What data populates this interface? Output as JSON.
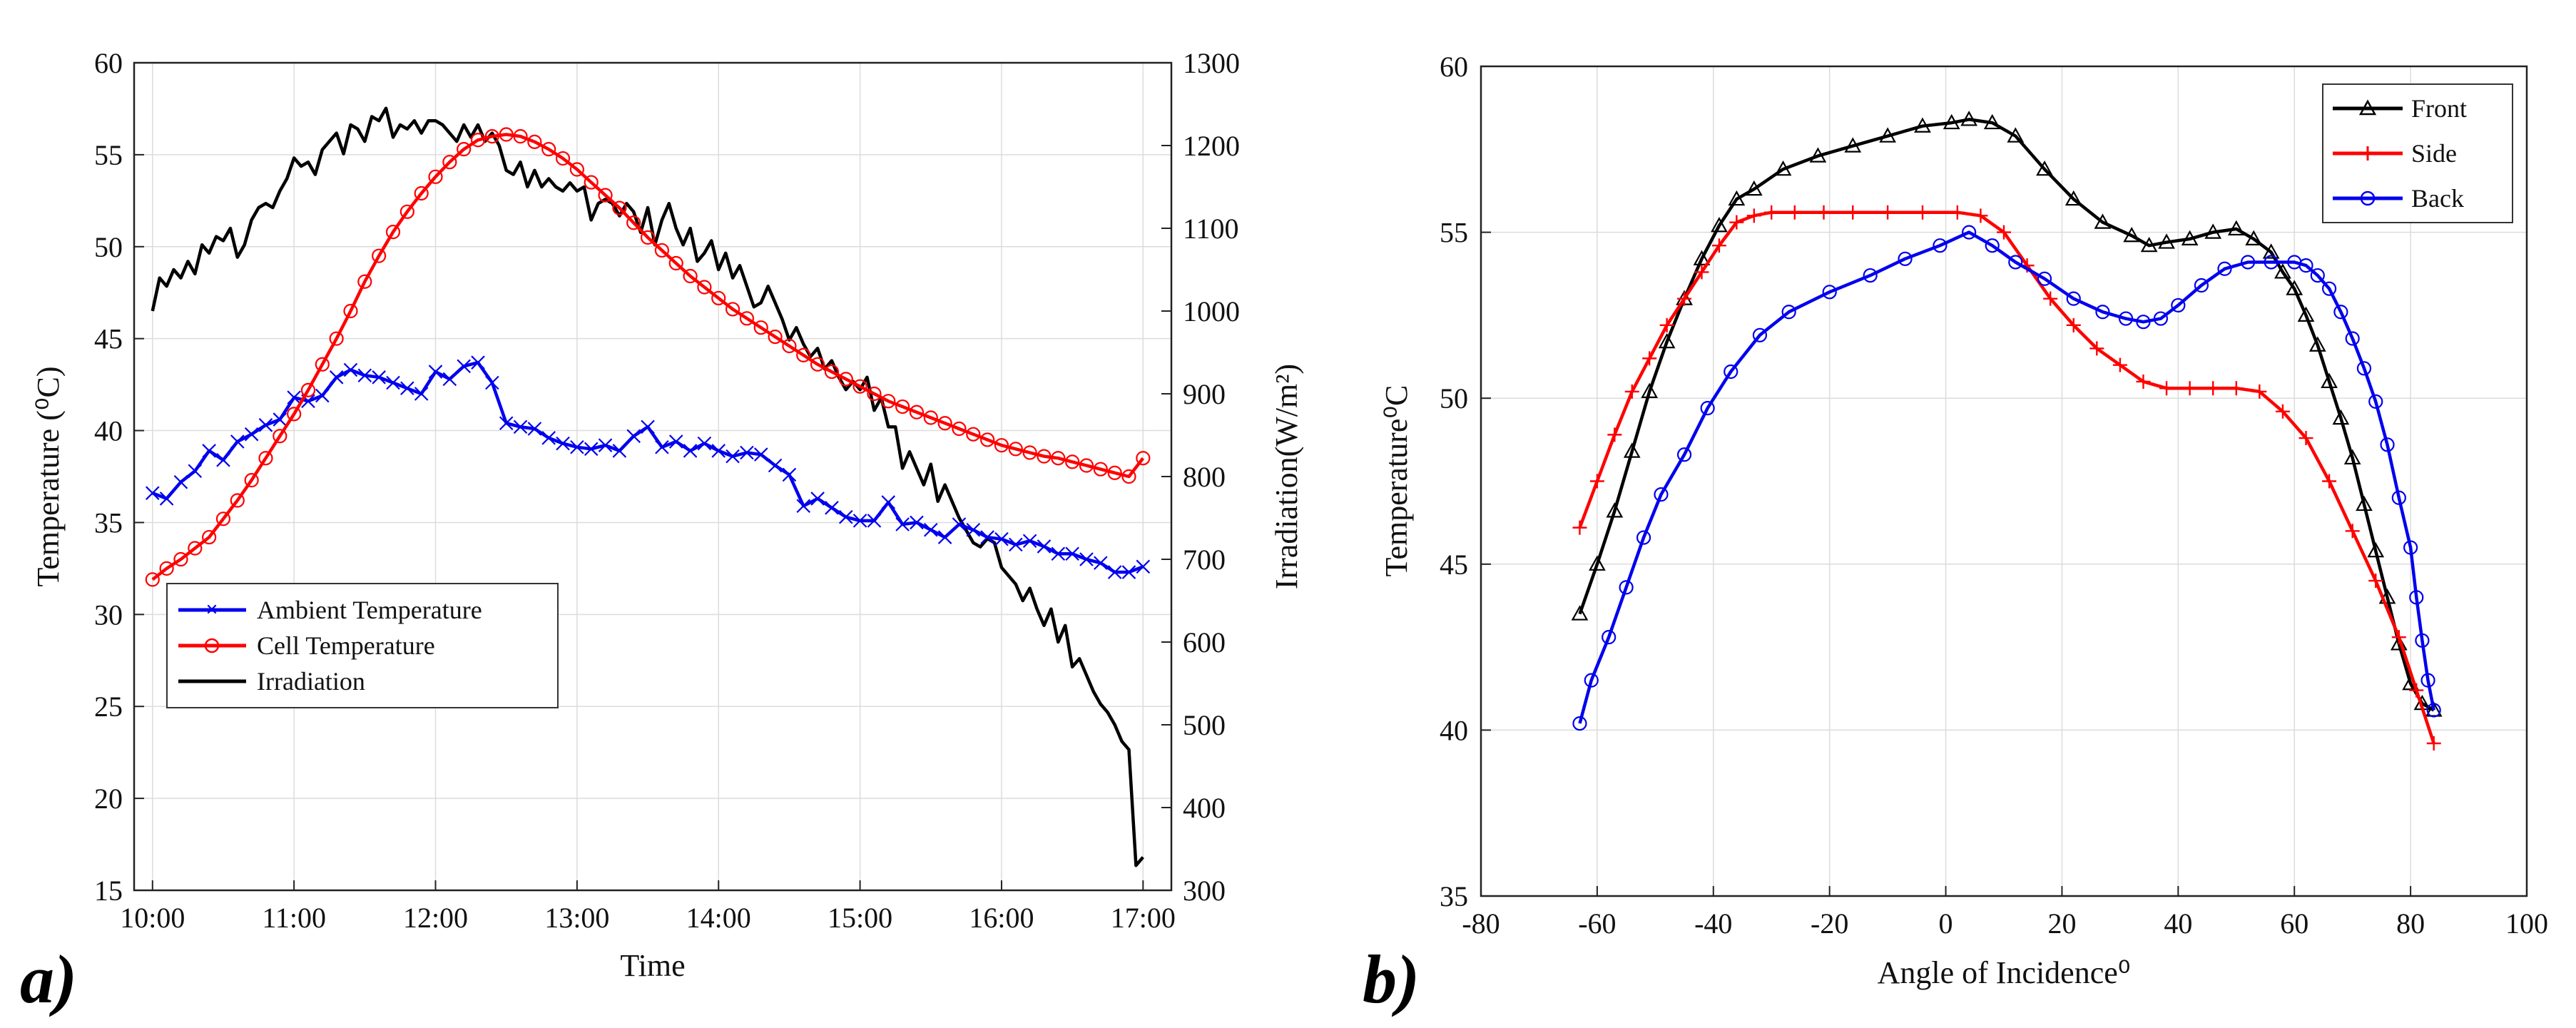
{
  "chart_data": [
    {
      "panel_label": "a)",
      "type": "line",
      "xlabel": "Time",
      "ylabel": "Temperature (⁰C)",
      "ylabel_right": "Irradiation(W/m²)",
      "x_unit": "hours",
      "xlim": [
        9.87,
        17.2
      ],
      "ylim": [
        15,
        60
      ],
      "ylim_right": [
        300,
        1300
      ],
      "grid": true,
      "legend_position": "bottom-left",
      "x_ticks": [
        10,
        11,
        12,
        13,
        14,
        15,
        16,
        17
      ],
      "x_tick_labels": [
        "10:00",
        "11:00",
        "12:00",
        "13:00",
        "14:00",
        "15:00",
        "16:00",
        "17:00"
      ],
      "y_ticks": [
        15,
        20,
        25,
        30,
        35,
        40,
        45,
        50,
        55,
        60
      ],
      "y_tick_labels": [
        "15",
        "20",
        "25",
        "30",
        "35",
        "40",
        "45",
        "50",
        "55",
        "60"
      ],
      "y_right_ticks": [
        300,
        400,
        500,
        600,
        700,
        800,
        900,
        1000,
        1100,
        1200,
        1300
      ],
      "y_right_tick_labels": [
        "300",
        "400",
        "500",
        "600",
        "700",
        "800",
        "900",
        "1000",
        "1100",
        "1200",
        "1300"
      ],
      "series": [
        {
          "name": "Ambient Temperature",
          "axis": "left",
          "color": "#0000ee",
          "marker": "x",
          "x": [
            10.0,
            10.1,
            10.2,
            10.3,
            10.4,
            10.5,
            10.6,
            10.7,
            10.8,
            10.9,
            11.0,
            11.1,
            11.2,
            11.3,
            11.4,
            11.5,
            11.6,
            11.7,
            11.8,
            11.9,
            12.0,
            12.1,
            12.2,
            12.3,
            12.4,
            12.5,
            12.6,
            12.7,
            12.8,
            12.9,
            13.0,
            13.1,
            13.2,
            13.3,
            13.4,
            13.5,
            13.6,
            13.7,
            13.8,
            13.9,
            14.0,
            14.1,
            14.2,
            14.3,
            14.4,
            14.5,
            14.6,
            14.7,
            14.8,
            14.9,
            15.0,
            15.1,
            15.2,
            15.3,
            15.4,
            15.5,
            15.6,
            15.7,
            15.8,
            15.9,
            16.0,
            16.1,
            16.2,
            16.3,
            16.4,
            16.5,
            16.6,
            16.7,
            16.8,
            16.9,
            17.0
          ],
          "values": [
            36.6,
            36.3,
            37.2,
            37.8,
            38.9,
            38.4,
            39.4,
            39.8,
            40.3,
            40.6,
            41.8,
            41.6,
            41.9,
            42.9,
            43.3,
            43.0,
            42.9,
            42.6,
            42.3,
            42.0,
            43.2,
            42.8,
            43.5,
            43.7,
            42.6,
            40.4,
            40.2,
            40.1,
            39.6,
            39.3,
            39.1,
            39.0,
            39.2,
            38.9,
            39.7,
            40.2,
            39.1,
            39.4,
            38.9,
            39.3,
            38.9,
            38.6,
            38.8,
            38.7,
            38.1,
            37.6,
            35.9,
            36.3,
            35.8,
            35.3,
            35.1,
            35.1,
            36.1,
            34.9,
            35.0,
            34.6,
            34.2,
            34.9,
            34.6,
            34.2,
            34.1,
            33.8,
            34.0,
            33.7,
            33.3,
            33.3,
            33.0,
            32.8,
            32.3,
            32.3,
            32.6
          ]
        },
        {
          "name": "Cell Temperature",
          "axis": "left",
          "color": "#ff0000",
          "marker": "o",
          "x": [
            10.0,
            10.1,
            10.2,
            10.3,
            10.4,
            10.5,
            10.6,
            10.7,
            10.8,
            10.9,
            11.0,
            11.1,
            11.2,
            11.3,
            11.4,
            11.5,
            11.6,
            11.7,
            11.8,
            11.9,
            12.0,
            12.1,
            12.2,
            12.3,
            12.4,
            12.5,
            12.6,
            12.7,
            12.8,
            12.9,
            13.0,
            13.1,
            13.2,
            13.3,
            13.4,
            13.5,
            13.6,
            13.7,
            13.8,
            13.9,
            14.0,
            14.1,
            14.2,
            14.3,
            14.4,
            14.5,
            14.6,
            14.7,
            14.8,
            14.9,
            15.0,
            15.1,
            15.2,
            15.3,
            15.4,
            15.5,
            15.6,
            15.7,
            15.8,
            15.9,
            16.0,
            16.1,
            16.2,
            16.3,
            16.4,
            16.5,
            16.6,
            16.7,
            16.8,
            16.9,
            17.0
          ],
          "values": [
            31.9,
            32.5,
            33.0,
            33.6,
            34.2,
            35.2,
            36.2,
            37.3,
            38.5,
            39.7,
            40.9,
            42.2,
            43.6,
            45.0,
            46.5,
            48.1,
            49.5,
            50.8,
            51.9,
            52.9,
            53.8,
            54.6,
            55.3,
            55.8,
            56.0,
            56.1,
            56.0,
            55.7,
            55.3,
            54.8,
            54.2,
            53.5,
            52.8,
            52.1,
            51.3,
            50.5,
            49.8,
            49.1,
            48.4,
            47.8,
            47.2,
            46.6,
            46.1,
            45.6,
            45.1,
            44.6,
            44.1,
            43.6,
            43.2,
            42.8,
            42.4,
            42.0,
            41.6,
            41.3,
            41.0,
            40.7,
            40.4,
            40.1,
            39.8,
            39.5,
            39.2,
            39.0,
            38.8,
            38.6,
            38.5,
            38.3,
            38.1,
            37.9,
            37.7,
            37.5,
            38.5
          ]
        },
        {
          "name": "Irradiation",
          "axis": "right",
          "color": "#000000",
          "marker": "none",
          "x": [
            10.0,
            10.05,
            10.1,
            10.15,
            10.2,
            10.25,
            10.3,
            10.35,
            10.4,
            10.45,
            10.5,
            10.55,
            10.6,
            10.65,
            10.7,
            10.75,
            10.8,
            10.85,
            10.9,
            10.95,
            11.0,
            11.05,
            11.1,
            11.15,
            11.2,
            11.25,
            11.3,
            11.35,
            11.4,
            11.45,
            11.5,
            11.55,
            11.6,
            11.65,
            11.7,
            11.75,
            11.8,
            11.85,
            11.9,
            11.95,
            12.0,
            12.05,
            12.1,
            12.15,
            12.2,
            12.25,
            12.3,
            12.35,
            12.4,
            12.45,
            12.5,
            12.55,
            12.6,
            12.65,
            12.7,
            12.75,
            12.8,
            12.85,
            12.9,
            12.95,
            13.0,
            13.05,
            13.1,
            13.15,
            13.2,
            13.25,
            13.3,
            13.35,
            13.4,
            13.45,
            13.5,
            13.55,
            13.6,
            13.65,
            13.7,
            13.75,
            13.8,
            13.85,
            13.9,
            13.95,
            14.0,
            14.05,
            14.1,
            14.15,
            14.2,
            14.25,
            14.3,
            14.35,
            14.4,
            14.45,
            14.5,
            14.55,
            14.6,
            14.65,
            14.7,
            14.75,
            14.8,
            14.85,
            14.9,
            14.95,
            15.0,
            15.05,
            15.1,
            15.15,
            15.2,
            15.25,
            15.3,
            15.35,
            15.4,
            15.45,
            15.5,
            15.55,
            15.6,
            15.65,
            15.7,
            15.75,
            15.8,
            15.85,
            15.9,
            15.95,
            16.0,
            16.05,
            16.1,
            16.15,
            16.2,
            16.25,
            16.3,
            16.35,
            16.4,
            16.45,
            16.5,
            16.55,
            16.6,
            16.65,
            16.7,
            16.75,
            16.8,
            16.85,
            16.9,
            16.95,
            17.0
          ],
          "values": [
            1000,
            1040,
            1030,
            1050,
            1040,
            1060,
            1045,
            1080,
            1070,
            1090,
            1085,
            1100,
            1065,
            1080,
            1110,
            1125,
            1130,
            1125,
            1145,
            1160,
            1185,
            1175,
            1180,
            1165,
            1195,
            1205,
            1215,
            1190,
            1225,
            1220,
            1205,
            1235,
            1230,
            1245,
            1210,
            1225,
            1220,
            1230,
            1215,
            1230,
            1230,
            1225,
            1215,
            1205,
            1225,
            1210,
            1225,
            1205,
            1215,
            1200,
            1170,
            1165,
            1180,
            1150,
            1170,
            1150,
            1160,
            1150,
            1145,
            1155,
            1145,
            1150,
            1110,
            1130,
            1135,
            1130,
            1115,
            1130,
            1120,
            1095,
            1125,
            1080,
            1110,
            1130,
            1100,
            1080,
            1100,
            1060,
            1070,
            1085,
            1050,
            1070,
            1040,
            1055,
            1030,
            1005,
            1010,
            1030,
            1010,
            990,
            965,
            980,
            960,
            945,
            955,
            930,
            940,
            920,
            905,
            915,
            905,
            920,
            880,
            895,
            860,
            860,
            810,
            830,
            810,
            790,
            815,
            770,
            790,
            770,
            750,
            735,
            720,
            715,
            725,
            720,
            690,
            680,
            670,
            650,
            665,
            640,
            620,
            640,
            600,
            620,
            570,
            580,
            560,
            540,
            525,
            515,
            500,
            480,
            470,
            330,
            340
          ]
        }
      ]
    },
    {
      "panel_label": "b)",
      "type": "line",
      "xlabel": "Angle of Incidence⁰",
      "ylabel": "Temperature⁰C",
      "xlim": [
        -80,
        100
      ],
      "ylim": [
        35,
        60
      ],
      "grid": true,
      "legend_position": "top-right",
      "x_ticks": [
        -80,
        -60,
        -40,
        -20,
        0,
        20,
        40,
        60,
        80,
        100
      ],
      "x_tick_labels": [
        "-80",
        "-60",
        "-40",
        "-20",
        "0",
        "20",
        "40",
        "60",
        "80",
        "100"
      ],
      "y_ticks": [
        35,
        40,
        45,
        50,
        55,
        60
      ],
      "y_tick_labels": [
        "35",
        "40",
        "45",
        "50",
        "55",
        "60"
      ],
      "series": [
        {
          "name": "Front",
          "color": "#000000",
          "marker": "triangle",
          "x": [
            -63,
            -60,
            -57,
            -54,
            -51,
            -48,
            -45,
            -42,
            -39,
            -36,
            -33,
            -28,
            -22,
            -16,
            -10,
            -4,
            1,
            4,
            8,
            12,
            17,
            22,
            27,
            32,
            35,
            38,
            42,
            46,
            50,
            53,
            56,
            58,
            60,
            62,
            64,
            66,
            68,
            70,
            72,
            74,
            76,
            78,
            80,
            82,
            84
          ],
          "values": [
            43.5,
            45.0,
            46.6,
            48.4,
            50.2,
            51.7,
            53.0,
            54.2,
            55.2,
            56.0,
            56.3,
            56.9,
            57.3,
            57.6,
            57.9,
            58.2,
            58.3,
            58.4,
            58.3,
            57.9,
            56.9,
            56.0,
            55.3,
            54.9,
            54.6,
            54.7,
            54.8,
            55.0,
            55.1,
            54.8,
            54.4,
            53.8,
            53.3,
            52.5,
            51.6,
            50.5,
            49.4,
            48.2,
            46.8,
            45.4,
            44.0,
            42.6,
            41.4,
            40.8,
            40.6
          ]
        },
        {
          "name": "Side",
          "color": "#ff0000",
          "marker": "plus",
          "x": [
            -63,
            -60,
            -57,
            -54,
            -51,
            -48,
            -45,
            -42,
            -39,
            -36,
            -33,
            -30,
            -26,
            -21,
            -16,
            -10,
            -4,
            2,
            6,
            10,
            14,
            18,
            22,
            26,
            30,
            34,
            38,
            42,
            46,
            50,
            54,
            58,
            62,
            66,
            70,
            74,
            78,
            81,
            84
          ],
          "values": [
            46.1,
            47.5,
            48.9,
            50.2,
            51.2,
            52.2,
            53.0,
            53.8,
            54.6,
            55.3,
            55.5,
            55.6,
            55.6,
            55.6,
            55.6,
            55.6,
            55.6,
            55.6,
            55.5,
            55.0,
            54.0,
            53.0,
            52.2,
            51.5,
            51.0,
            50.5,
            50.3,
            50.3,
            50.3,
            50.3,
            50.2,
            49.6,
            48.8,
            47.5,
            46.0,
            44.5,
            42.8,
            41.2,
            39.6
          ]
        },
        {
          "name": "Back",
          "color": "#0000ee",
          "marker": "circle",
          "x": [
            -63,
            -61,
            -58,
            -55,
            -52,
            -49,
            -45,
            -41,
            -37,
            -32,
            -27,
            -20,
            -13,
            -7,
            -1,
            4,
            8,
            12,
            17,
            22,
            27,
            31,
            34,
            37,
            40,
            44,
            48,
            52,
            56,
            60,
            62,
            64,
            66,
            68,
            70,
            72,
            74,
            76,
            78,
            80,
            81,
            82,
            83,
            84
          ],
          "values": [
            40.2,
            41.5,
            42.8,
            44.3,
            45.8,
            47.1,
            48.3,
            49.7,
            50.8,
            51.9,
            52.6,
            53.2,
            53.7,
            54.2,
            54.6,
            55.0,
            54.6,
            54.1,
            53.6,
            53.0,
            52.6,
            52.4,
            52.3,
            52.4,
            52.8,
            53.4,
            53.9,
            54.1,
            54.1,
            54.1,
            54.0,
            53.7,
            53.3,
            52.6,
            51.8,
            50.9,
            49.9,
            48.6,
            47.0,
            45.5,
            44.0,
            42.7,
            41.5,
            40.6
          ]
        }
      ]
    }
  ]
}
